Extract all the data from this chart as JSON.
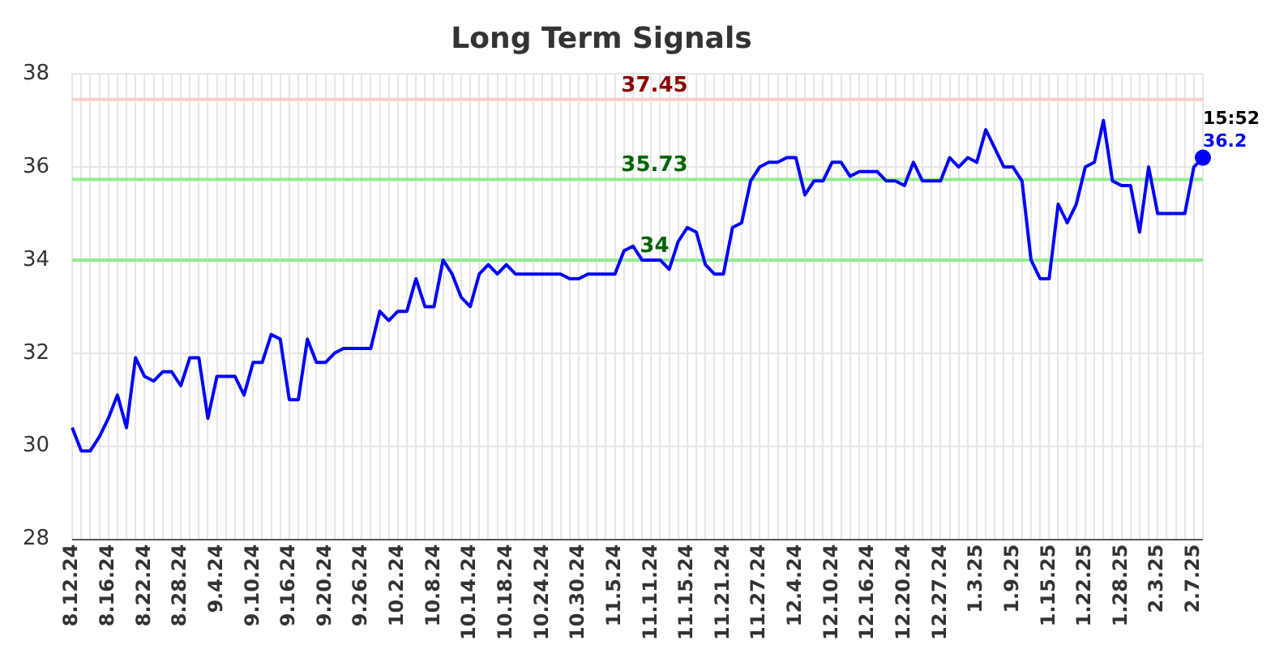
{
  "chart_data": {
    "type": "line",
    "title": "Long Term Signals",
    "categories": [
      "8.12.24",
      null,
      null,
      null,
      "8.16.24",
      null,
      null,
      null,
      "8.22.24",
      null,
      null,
      null,
      "8.28.24",
      null,
      null,
      null,
      "9.4.24",
      null,
      null,
      null,
      "9.10.24",
      null,
      null,
      null,
      "9.16.24",
      null,
      null,
      null,
      "9.20.24",
      null,
      null,
      null,
      "9.26.24",
      null,
      null,
      null,
      "10.2.24",
      null,
      null,
      null,
      "10.8.24",
      null,
      null,
      null,
      "10.14.24",
      null,
      null,
      null,
      "10.18.24",
      null,
      null,
      null,
      "10.24.24",
      null,
      null,
      null,
      "10.30.24",
      null,
      null,
      null,
      "11.5.24",
      null,
      null,
      null,
      "11.11.24",
      null,
      null,
      null,
      "11.15.24",
      null,
      null,
      null,
      "11.21.24",
      null,
      null,
      null,
      "11.27.24",
      null,
      null,
      null,
      "12.4.24",
      null,
      null,
      null,
      "12.10.24",
      null,
      null,
      null,
      "12.16.24",
      null,
      null,
      null,
      "12.20.24",
      null,
      null,
      null,
      "12.27.24",
      null,
      null,
      null,
      "1.3.25",
      null,
      null,
      null,
      "1.9.25",
      null,
      null,
      null,
      "1.15.25",
      null,
      null,
      null,
      "1.22.25",
      null,
      null,
      null,
      "1.28.25",
      null,
      null,
      null,
      "2.3.25",
      null,
      null,
      null,
      "2.7.25",
      null
    ],
    "series": [
      {
        "color": "#0000ff",
        "values": [
          30.4,
          29.9,
          29.9,
          30.2,
          30.6,
          31.1,
          30.4,
          31.9,
          31.5,
          31.4,
          31.6,
          31.6,
          31.3,
          31.9,
          31.9,
          30.6,
          31.5,
          31.5,
          31.5,
          31.1,
          31.8,
          31.8,
          32.4,
          32.3,
          31.0,
          31.0,
          32.3,
          31.8,
          31.8,
          32.0,
          32.1,
          32.1,
          32.1,
          32.1,
          32.9,
          32.7,
          32.9,
          32.9,
          33.6,
          33.0,
          33.0,
          34.0,
          33.7,
          33.2,
          33.0,
          33.7,
          33.9,
          33.7,
          33.9,
          33.7,
          33.7,
          33.7,
          33.7,
          33.7,
          33.7,
          33.6,
          33.6,
          33.7,
          33.7,
          33.7,
          33.7,
          34.2,
          34.3,
          34.0,
          34.0,
          34.0,
          33.8,
          34.4,
          34.7,
          34.6,
          33.9,
          33.7,
          33.7,
          34.7,
          34.8,
          35.7,
          36.0,
          36.1,
          36.1,
          36.2,
          36.2,
          35.4,
          35.7,
          35.7,
          36.1,
          36.1,
          35.8,
          35.9,
          35.9,
          35.9,
          35.7,
          35.7,
          35.6,
          36.1,
          35.7,
          35.7,
          35.7,
          36.2,
          36.0,
          36.2,
          36.1,
          36.8,
          36.4,
          36.0,
          36.0,
          35.7,
          34.0,
          33.6,
          33.6,
          35.2,
          34.8,
          35.2,
          36.0,
          36.1,
          37.0,
          35.7,
          35.6,
          35.6,
          34.6,
          36.0,
          35.0,
          35.0,
          35.0,
          35.0,
          36.0,
          36.2
        ],
        "value_labels": [
          null,
          null,
          null,
          null,
          null,
          null,
          null,
          null,
          null,
          null,
          null,
          null,
          null,
          null,
          null,
          null,
          null,
          null,
          null,
          null,
          null,
          null,
          null,
          null,
          null,
          null,
          null,
          null,
          null,
          null,
          null,
          null,
          null,
          null,
          null,
          null,
          null,
          null,
          null,
          null,
          null,
          null,
          null,
          null,
          null,
          null,
          null,
          null,
          null,
          null,
          null,
          null,
          null,
          null,
          null,
          null,
          null,
          null,
          null,
          null,
          null,
          null,
          null,
          null,
          null,
          null,
          null,
          null,
          null,
          null,
          null,
          null,
          null,
          null,
          null,
          null,
          null,
          null,
          null,
          null,
          null,
          null,
          null,
          null,
          null,
          null,
          null,
          null,
          null,
          null,
          null,
          null,
          null,
          null,
          null,
          null,
          null,
          null,
          null,
          null,
          null,
          null,
          null,
          null,
          null,
          null,
          null,
          null,
          null,
          null,
          null,
          null,
          null,
          null,
          null,
          null,
          null,
          null,
          null,
          null,
          null,
          null,
          null,
          null,
          null,
          "36.2"
        ]
      }
    ],
    "ylim": [
      28,
      38
    ],
    "yticks": [
      28,
      30,
      32,
      34,
      36,
      38
    ],
    "grid": true,
    "legend": false,
    "marker": "none",
    "line_style": "solid",
    "ref_lines": [
      {
        "axis": "y",
        "value": 37.45,
        "label": "37.45",
        "color": "#ffcccc"
      },
      {
        "axis": "y",
        "value": 35.73,
        "label": "35.73",
        "color": "#90ee90"
      },
      {
        "axis": "y",
        "value": 34,
        "label": "34",
        "color": "#90ee90"
      }
    ],
    "annotations": [
      "15:52"
    ]
  }
}
